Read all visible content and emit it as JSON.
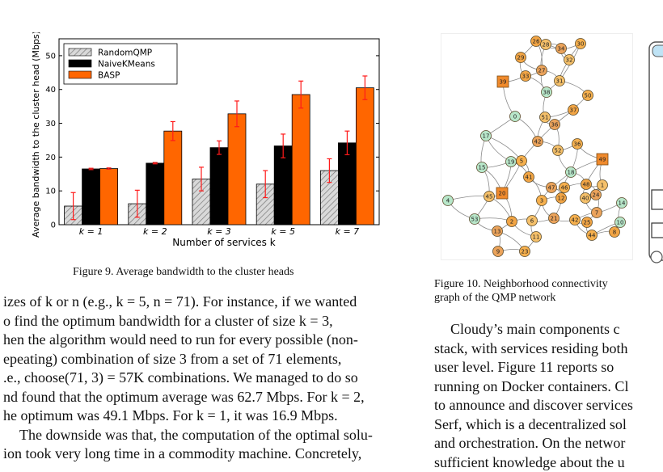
{
  "figure9": {
    "caption": "Figure 9.  Average bandwidth to the cluster heads",
    "chart_data": {
      "type": "bar",
      "title": "",
      "xlabel": "Number of services k",
      "ylabel": "Average bandwidth to the cluster head (Mbps)",
      "categories": [
        "k = 1",
        "k = 2",
        "k = 3",
        "k = 5",
        "k = 7"
      ],
      "ylim": [
        0,
        55
      ],
      "yticks": [
        0,
        10,
        20,
        30,
        40,
        50
      ],
      "legend_position": "top-left",
      "series": [
        {
          "name": "RandomQMP",
          "color": "#d3d3d3",
          "hatch": true,
          "values": [
            5.5,
            6.2,
            13.5,
            12,
            16
          ],
          "errors": [
            4,
            4,
            3.5,
            4,
            3.5
          ]
        },
        {
          "name": "NaiveKMeans",
          "color": "#000000",
          "hatch": false,
          "values": [
            16.5,
            18.2,
            22.8,
            23.3,
            24.2
          ],
          "errors": [
            0.2,
            0.2,
            2,
            3.5,
            3.5
          ]
        },
        {
          "name": "BASP",
          "color": "#ff6600",
          "hatch": false,
          "values": [
            16.6,
            27.7,
            32.8,
            38.5,
            40.5
          ],
          "errors": [
            0.2,
            2.8,
            3.8,
            4,
            3.5
          ]
        }
      ]
    }
  },
  "figure10": {
    "caption": "Figure 10.  Neighborhood connectivity graph of the QMP network",
    "chart_data": {
      "type": "graph",
      "node_labels": [
        "26",
        "28",
        "34",
        "30",
        "29",
        "32",
        "27",
        "39",
        "33",
        "31",
        "38",
        "50",
        "37",
        "51",
        "36",
        "0",
        "17",
        "52",
        "42",
        "36",
        "49",
        "15",
        "19",
        "5",
        "41",
        "18",
        "47",
        "46",
        "48",
        "1",
        "20",
        "3",
        "12",
        "40",
        "24",
        "14",
        "4",
        "45",
        "7",
        "53",
        "2",
        "6",
        "21",
        "42",
        "25",
        "10",
        "13",
        "44",
        "8",
        "11",
        "9",
        "23"
      ],
      "square_nodes": [
        "39",
        "20",
        "49"
      ]
    }
  },
  "text": {
    "left_lines": [
      "izes of k or n (e.g., k = 5, n = 71). For instance, if we wanted",
      "o find the optimum bandwidth for a cluster of size k = 3,",
      "hen the algorithm would need to run for every possible (non-",
      "epeating) combination of size 3 from a set of 71 elements,",
      ".e., choose(71, 3) = 57K combinations. We managed to do so",
      "nd found that the optimum average was 62.7 Mbps. For k = 2,",
      "he optimum was 49.1 Mbps. For k = 1, it was 16.9 Mbps.",
      "The downside was that, the computation of the optimal solu-",
      "ion took very long time in a commodity machine. Concretely,"
    ],
    "right_lines": [
      "Cloudy’s main components c",
      "stack, with services residing both",
      "user level. Figure 11 reports so",
      "running on Docker containers. Cl",
      "to announce and discover services",
      "Serf, which is a decentralized sol",
      "and orchestration. On the networ",
      "sufficient knowledge about the u"
    ]
  }
}
